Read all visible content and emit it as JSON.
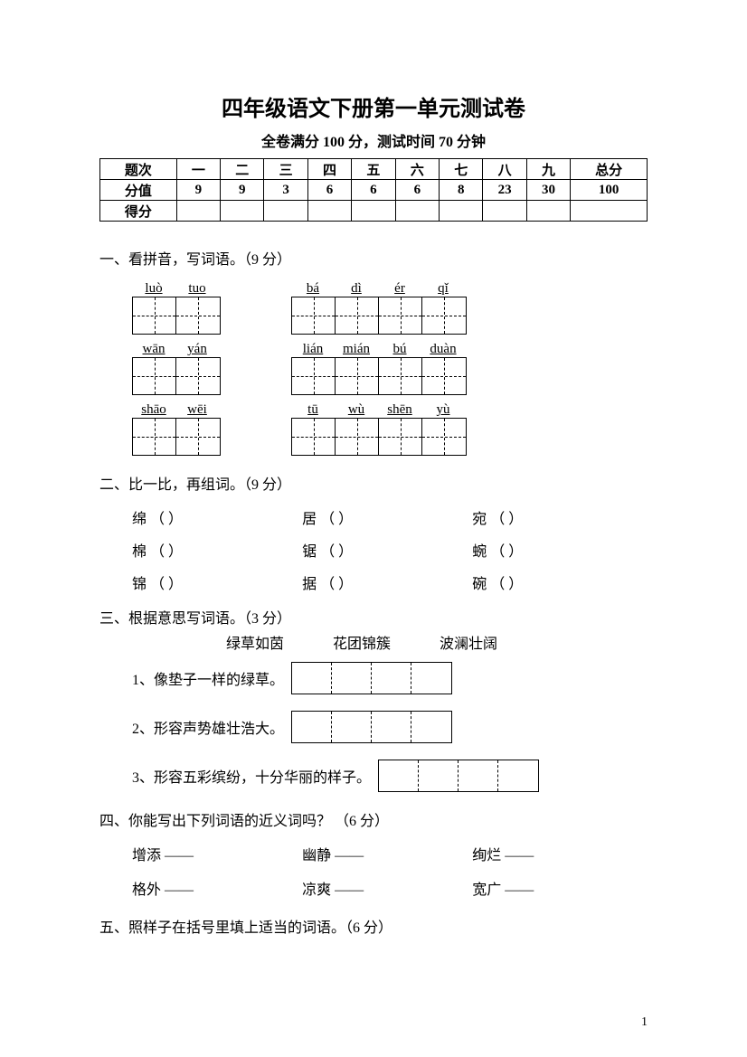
{
  "title": "四年级语文下册第一单元测试卷",
  "subtitle": "全卷满分 100 分，测试时间 70 分钟",
  "table": {
    "header": [
      "题次",
      "一",
      "二",
      "三",
      "四",
      "五",
      "六",
      "七",
      "八",
      "九",
      "总分"
    ],
    "row2": [
      "分值",
      "9",
      "9",
      "3",
      "6",
      "6",
      "6",
      "8",
      "23",
      "30",
      "100"
    ],
    "row3": [
      "得分",
      "",
      "",
      "",
      "",
      "",
      "",
      "",
      "",
      "",
      ""
    ]
  },
  "sec1": {
    "title": "一、看拼音，写词语。（9 分）",
    "rows": [
      {
        "left": [
          "luò",
          "tuo"
        ],
        "right": [
          "bá",
          "dì",
          "ér",
          "qǐ"
        ]
      },
      {
        "left": [
          "wān",
          "yán"
        ],
        "right": [
          "lián",
          "mián",
          "bú",
          "duàn"
        ]
      },
      {
        "left": [
          "shāo",
          "wēi"
        ],
        "right": [
          "tū",
          "wù",
          "shēn",
          "yù"
        ]
      }
    ]
  },
  "sec2": {
    "title": "二、比一比，再组词。（9 分）",
    "rows": [
      [
        "绵",
        "居",
        "宛"
      ],
      [
        "棉",
        "锯",
        "蜿"
      ],
      [
        "锦",
        "据",
        "碗"
      ]
    ],
    "paren": "（           ）"
  },
  "sec3": {
    "title": "三、根据意思写词语。（3 分）",
    "words": [
      "绿草如茵",
      "花团锦簇",
      "波澜壮阔"
    ],
    "items": [
      "1、像垫子一样的绿草。",
      "2、形容声势雄壮浩大。",
      "3、形容五彩缤纷，十分华丽的样子。"
    ]
  },
  "sec4": {
    "title": "四、你能写出下列词语的近义词吗？ （6 分）",
    "rows": [
      [
        "增添 ——",
        "幽静 ——",
        "绚烂 ——"
      ],
      [
        "格外 ——",
        "凉爽 ——",
        "宽广 ——"
      ]
    ]
  },
  "sec5": {
    "title": "五、照样子在括号里填上适当的词语。（6 分）"
  },
  "pagenum": "1"
}
